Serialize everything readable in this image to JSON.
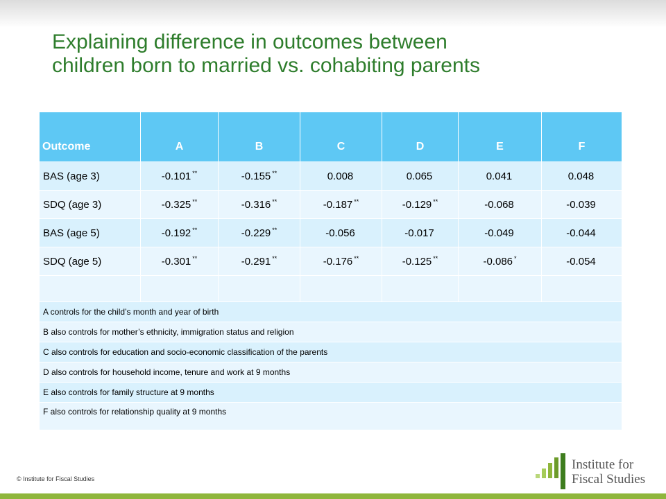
{
  "title": {
    "line1": "Explaining difference in outcomes between",
    "line2": "children born to married vs. cohabiting parents"
  },
  "table": {
    "headers": [
      "Outcome",
      "A",
      "B",
      "C",
      "D",
      "E",
      "F"
    ],
    "rows": [
      {
        "label": "BAS (age 3)",
        "cells": [
          {
            "value": "-0.101",
            "sig": "**"
          },
          {
            "value": "-0.155",
            "sig": "**"
          },
          {
            "value": "0.008",
            "sig": ""
          },
          {
            "value": "0.065",
            "sig": ""
          },
          {
            "value": "0.041",
            "sig": ""
          },
          {
            "value": "0.048",
            "sig": ""
          }
        ]
      },
      {
        "label": "SDQ (age 3)",
        "cells": [
          {
            "value": "-0.325",
            "sig": "**"
          },
          {
            "value": "-0.316",
            "sig": "**"
          },
          {
            "value": "-0.187",
            "sig": "**"
          },
          {
            "value": "-0.129",
            "sig": "**"
          },
          {
            "value": "-0.068",
            "sig": ""
          },
          {
            "value": "-0.039",
            "sig": ""
          }
        ]
      },
      {
        "label": "BAS (age 5)",
        "cells": [
          {
            "value": "-0.192",
            "sig": "**"
          },
          {
            "value": "-0.229",
            "sig": "**"
          },
          {
            "value": "-0.056",
            "sig": ""
          },
          {
            "value": "-0.017",
            "sig": ""
          },
          {
            "value": "-0.049",
            "sig": ""
          },
          {
            "value": "-0.044",
            "sig": ""
          }
        ]
      },
      {
        "label": "SDQ (age 5)",
        "cells": [
          {
            "value": "-0.301",
            "sig": "**"
          },
          {
            "value": "-0.291",
            "sig": "**"
          },
          {
            "value": "-0.176",
            "sig": "**"
          },
          {
            "value": "-0.125",
            "sig": "**"
          },
          {
            "value": "-0.086",
            "sig": "*"
          },
          {
            "value": "-0.054",
            "sig": ""
          }
        ]
      }
    ],
    "notes": [
      "A controls for the child’s month and year of birth",
      "B also controls for mother’s ethnicity, immigration status and religion",
      "C also controls for education and socio-economic classification of the parents",
      "D also controls for household income, tenure and work at 9 months",
      "E also controls for family structure at 9 months",
      "F also controls for relationship quality at 9 months"
    ]
  },
  "footer": {
    "copyright": "© Institute for Fiscal Studies",
    "logo_line1": "Institute for",
    "logo_line2": "Fiscal Studies"
  },
  "colors": {
    "title": "#2e7d2c",
    "header_bg": "#5ec8f4",
    "row_bg": "#d9f1fd",
    "row_alt_bg": "#e9f6fe",
    "accent_bar": "#8fb63c"
  }
}
